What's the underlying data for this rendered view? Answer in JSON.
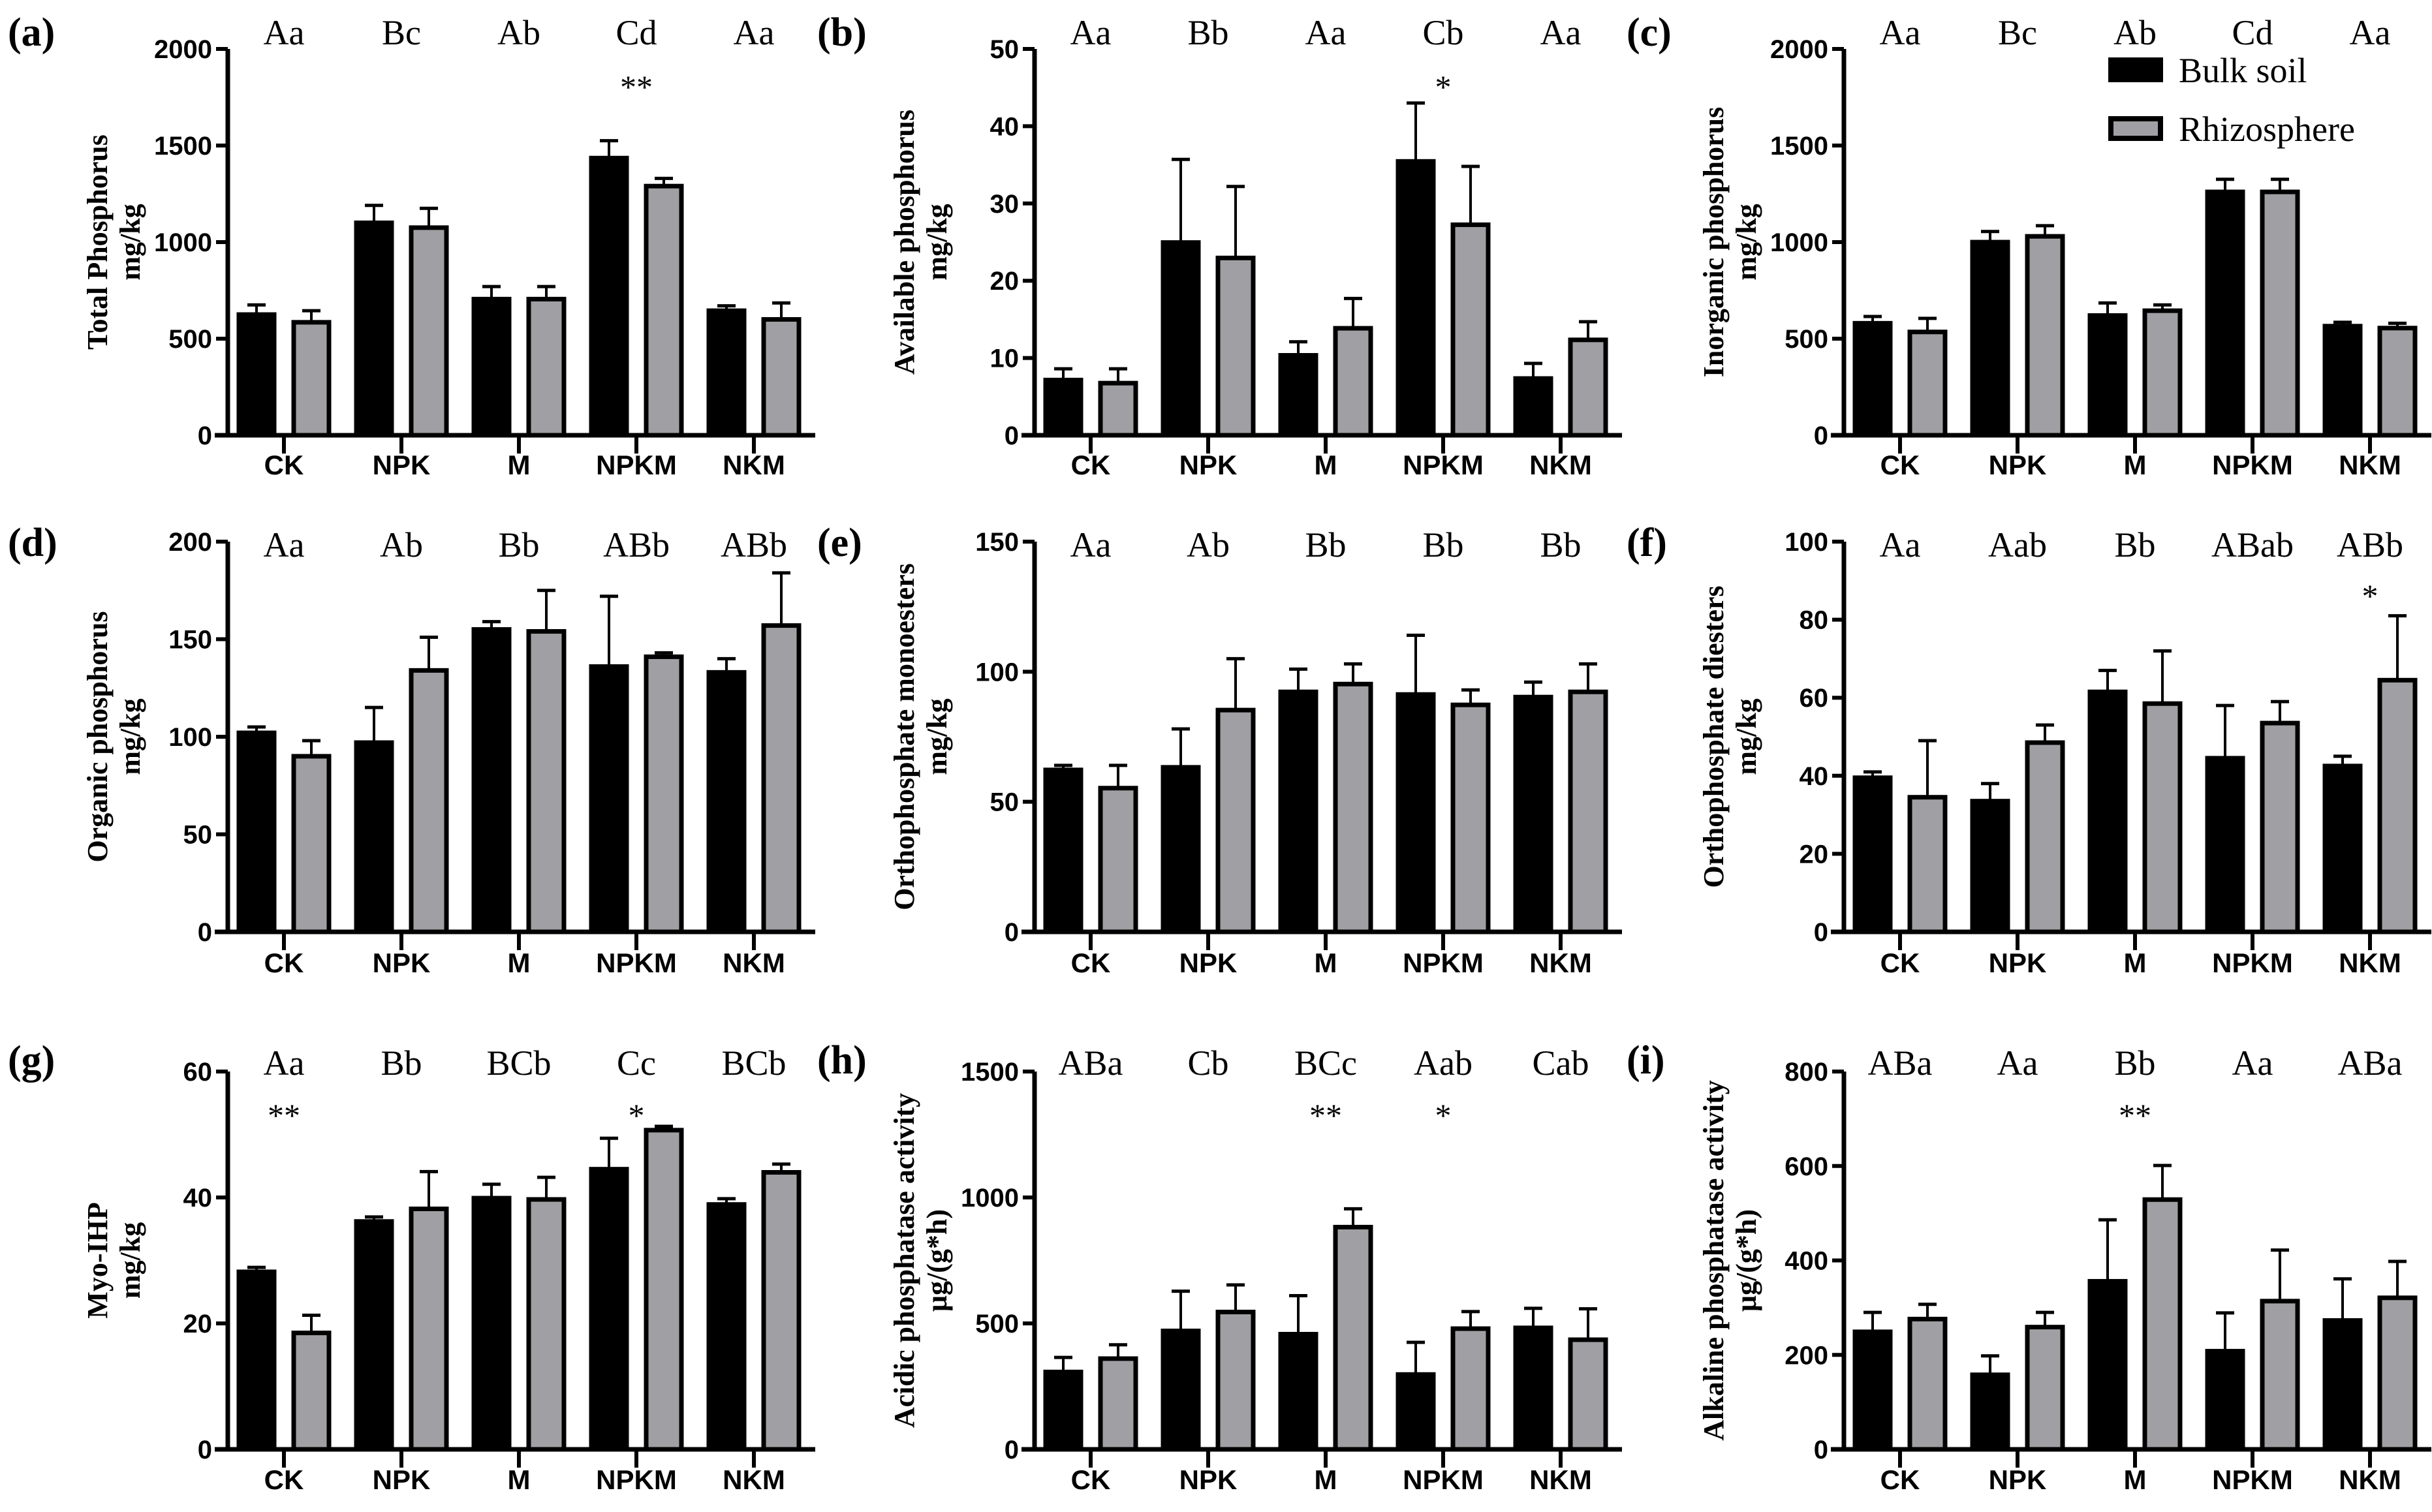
{
  "chart_data": {
    "type": "bar",
    "layout": "3x3 grid of grouped bar charts with error bars",
    "categories": [
      "CK",
      "NPK",
      "M",
      "NPKM",
      "NKM"
    ],
    "legend": {
      "placement": "top-right of panel (c)",
      "entries": [
        {
          "name": "Bulk soil",
          "color": "#000000"
        },
        {
          "name": "Rhizosphere",
          "color": "#a0a0a4"
        }
      ]
    },
    "panels": [
      {
        "id": "a",
        "label": "(a)",
        "ylabel": [
          "Total Phosphorus",
          "mg/kg"
        ],
        "ylim": [
          0,
          2000
        ],
        "yticks": [
          0,
          500,
          1000,
          1500,
          2000
        ],
        "group_letters": [
          "Aa",
          "Bc",
          "Ab",
          "Cd",
          "Aa"
        ],
        "significance": [
          "",
          "",
          "",
          "**",
          ""
        ],
        "series": [
          {
            "name": "Bulk soil",
            "values": [
              635,
              1110,
              715,
              1445,
              655
            ],
            "errors": [
              40,
              80,
              55,
              80,
              15
            ]
          },
          {
            "name": "Rhizosphere",
            "values": [
              595,
              1085,
              715,
              1300,
              610
            ],
            "errors": [
              50,
              90,
              55,
              30,
              75
            ]
          }
        ]
      },
      {
        "id": "b",
        "label": "(b)",
        "ylabel": [
          "Available phosphorus",
          "mg/kg"
        ],
        "ylim": [
          0,
          50
        ],
        "yticks": [
          0,
          10,
          20,
          30,
          40,
          50
        ],
        "group_letters": [
          "Aa",
          "Bb",
          "Aa",
          "Cb",
          "Aa"
        ],
        "significance": [
          "",
          "",
          "",
          "*",
          ""
        ],
        "series": [
          {
            "name": "Bulk soil",
            "values": [
              7.4,
              25.2,
              10.6,
              35.7,
              7.6
            ],
            "errors": [
              1.2,
              10.5,
              1.5,
              7.3,
              1.7
            ]
          },
          {
            "name": "Rhizosphere",
            "values": [
              7.0,
              23.2,
              14.1,
              27.5,
              12.6
            ],
            "errors": [
              1.6,
              9.0,
              3.6,
              7.3,
              2.1
            ]
          }
        ]
      },
      {
        "id": "c",
        "label": "(c)",
        "ylabel": [
          "Inorganic phosphorus",
          "mg/kg"
        ],
        "ylim": [
          0,
          2000
        ],
        "yticks": [
          0,
          500,
          1000,
          1500,
          2000
        ],
        "group_letters": [
          "Aa",
          "Bc",
          "Ab",
          "Cd",
          "Aa"
        ],
        "significance": [
          "",
          "",
          "",
          "",
          ""
        ],
        "series": [
          {
            "name": "Bulk soil",
            "values": [
              590,
              1010,
              630,
              1270,
              575
            ],
            "errors": [
              25,
              45,
              55,
              55,
              10
            ]
          },
          {
            "name": "Rhizosphere",
            "values": [
              545,
              1040,
              655,
              1270,
              565
            ],
            "errors": [
              60,
              45,
              20,
              55,
              15
            ]
          }
        ]
      },
      {
        "id": "d",
        "label": "(d)",
        "ylabel": [
          "Organic phosphorus",
          "mg/kg"
        ],
        "ylim": [
          0,
          200
        ],
        "yticks": [
          0,
          50,
          100,
          150,
          200
        ],
        "group_letters": [
          "Aa",
          "Ab",
          "Bb",
          "ABb",
          "ABb"
        ],
        "significance": [
          "",
          "",
          "",
          "",
          ""
        ],
        "series": [
          {
            "name": "Bulk soil",
            "values": [
              103,
              98,
              156,
              137,
              134
            ],
            "errors": [
              2,
              17,
              3,
              35,
              6
            ]
          },
          {
            "name": "Rhizosphere",
            "values": [
              91,
              135,
              155,
              142,
              158
            ],
            "errors": [
              7,
              16,
              20,
              1,
              26
            ]
          }
        ]
      },
      {
        "id": "e",
        "label": "(e)",
        "ylabel": [
          "Orthophosphate monoesters",
          "mg/kg"
        ],
        "ylim": [
          0,
          150
        ],
        "yticks": [
          0,
          50,
          100,
          150
        ],
        "group_letters": [
          "Aa",
          "Ab",
          "Bb",
          "Bb",
          "Bb"
        ],
        "significance": [
          "",
          "",
          "",
          "",
          ""
        ],
        "series": [
          {
            "name": "Bulk soil",
            "values": [
              63,
              64,
              93,
              92,
              91
            ],
            "errors": [
              1,
              14,
              8,
              22,
              5
            ]
          },
          {
            "name": "Rhizosphere",
            "values": [
              56,
              86,
              96,
              88,
              93
            ],
            "errors": [
              8,
              19,
              7,
              5,
              10
            ]
          }
        ]
      },
      {
        "id": "f",
        "label": "(f)",
        "ylabel": [
          "Orthophosphate diesters",
          "mg/kg"
        ],
        "ylim": [
          0,
          100
        ],
        "yticks": [
          0,
          20,
          40,
          60,
          80,
          100
        ],
        "group_letters": [
          "Aa",
          "Aab",
          "Bb",
          "ABab",
          "ABb"
        ],
        "significance": [
          "",
          "",
          "",
          "",
          "*"
        ],
        "series": [
          {
            "name": "Bulk soil",
            "values": [
              40,
              34,
              62,
              45,
              43
            ],
            "errors": [
              1,
              4,
              5,
              13,
              2
            ]
          },
          {
            "name": "Rhizosphere",
            "values": [
              35,
              49,
              59,
              54,
              65
            ],
            "errors": [
              14,
              4,
              13,
              5,
              16
            ]
          }
        ]
      },
      {
        "id": "g",
        "label": "(g)",
        "ylabel": [
          "Myo-IHP",
          "mg/kg"
        ],
        "ylim": [
          0,
          60
        ],
        "yticks": [
          0,
          20,
          40,
          60
        ],
        "group_letters": [
          "Aa",
          "Bb",
          "BCb",
          "Cc",
          "BCb"
        ],
        "significance": [
          "**",
          "",
          "",
          "*",
          ""
        ],
        "series": [
          {
            "name": "Bulk soil",
            "values": [
              28.5,
              36.5,
              40.2,
              44.8,
              39.2
            ],
            "errors": [
              0.4,
              0.4,
              1.9,
              4.6,
              0.6
            ]
          },
          {
            "name": "Rhizosphere",
            "values": [
              18.8,
              38.5,
              40.0,
              51.0,
              44.3
            ],
            "errors": [
              2.5,
              5.6,
              3.2,
              0.3,
              1.0
            ]
          }
        ]
      },
      {
        "id": "h",
        "label": "(h)",
        "ylabel": [
          "Acidic phosphatase activity",
          "μg/(g*h)"
        ],
        "ylim": [
          0,
          1500
        ],
        "yticks": [
          0,
          500,
          1000,
          1500
        ],
        "group_letters": [
          "ABa",
          "Cb",
          "BCc",
          "Aab",
          "Cab"
        ],
        "significance": [
          "",
          "",
          "**",
          "*",
          ""
        ],
        "series": [
          {
            "name": "Bulk soil",
            "values": [
              315,
              478,
              465,
              305,
              490
            ],
            "errors": [
              50,
              150,
              145,
              120,
              70
            ]
          },
          {
            "name": "Rhizosphere",
            "values": [
              368,
              553,
              890,
              487,
              443
            ],
            "errors": [
              47,
              100,
              65,
              60,
              115
            ]
          }
        ]
      },
      {
        "id": "i",
        "label": "(i)",
        "ylabel": [
          "Alkaline phosphatase activity",
          "μg/(g*h)"
        ],
        "ylim": [
          0,
          800
        ],
        "yticks": [
          0,
          200,
          400,
          600,
          800
        ],
        "group_letters": [
          "ABa",
          "Aa",
          "Bb",
          "Aa",
          "ABa"
        ],
        "significance": [
          "",
          "",
          "**",
          "",
          ""
        ],
        "series": [
          {
            "name": "Bulk soil",
            "values": [
              253,
              162,
              360,
              212,
              277
            ],
            "errors": [
              37,
              36,
              126,
              77,
              84
            ]
          },
          {
            "name": "Rhizosphere",
            "values": [
              280,
              263,
              533,
              318,
              325
            ],
            "errors": [
              27,
              27,
              68,
              104,
              73
            ]
          }
        ]
      }
    ]
  }
}
